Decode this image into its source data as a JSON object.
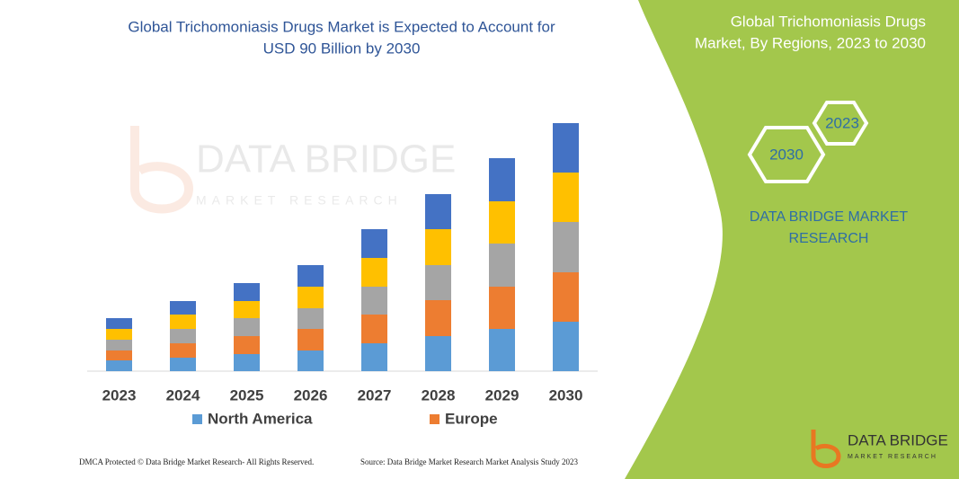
{
  "chart_data": {
    "type": "bar",
    "stacked": true,
    "title": [
      "Global Trichomoniasis Drugs Market is Expected to Account for",
      "USD 90 Billion by 2030"
    ],
    "categories": [
      "2023",
      "2024",
      "2025",
      "2026",
      "2027",
      "2028",
      "2029",
      "2030"
    ],
    "series": [
      {
        "name": "North America",
        "color": "#5b9bd5",
        "values": [
          12,
          15,
          19,
          23,
          31,
          39,
          47,
          55
        ]
      },
      {
        "name": "Europe",
        "color": "#ed7d31",
        "values": [
          11,
          16,
          20,
          24,
          32,
          40,
          47,
          55
        ]
      },
      {
        "color": "#a5a5a5",
        "values": [
          12,
          16,
          20,
          23,
          31,
          39,
          48,
          56
        ]
      },
      {
        "color": "#ffc000",
        "values": [
          12,
          16,
          19,
          24,
          32,
          40,
          47,
          55
        ]
      },
      {
        "color": "#4472c4",
        "values": [
          12,
          15,
          20,
          24,
          32,
          39,
          48,
          55
        ]
      }
    ]
  },
  "watermark": {
    "brand": "DATA BRIDGE",
    "sub": "MARKET RESEARCH"
  },
  "panel": {
    "title": [
      "Global Trichomoniasis Drugs",
      "Market, By Regions, 2023 to 2030"
    ],
    "hex_front": "2030",
    "hex_back": "2023",
    "brand": [
      "DATA BRIDGE MARKET",
      "RESEARCH"
    ]
  },
  "logo": {
    "brand": "DATA BRIDGE",
    "sub": "MARKET RESEARCH"
  },
  "footer": {
    "left": "DMCA Protected © Data Bridge Market Research-  All Rights Reserved.",
    "right": "Source: Data Bridge Market Research  Market Analysis Study 2023"
  }
}
